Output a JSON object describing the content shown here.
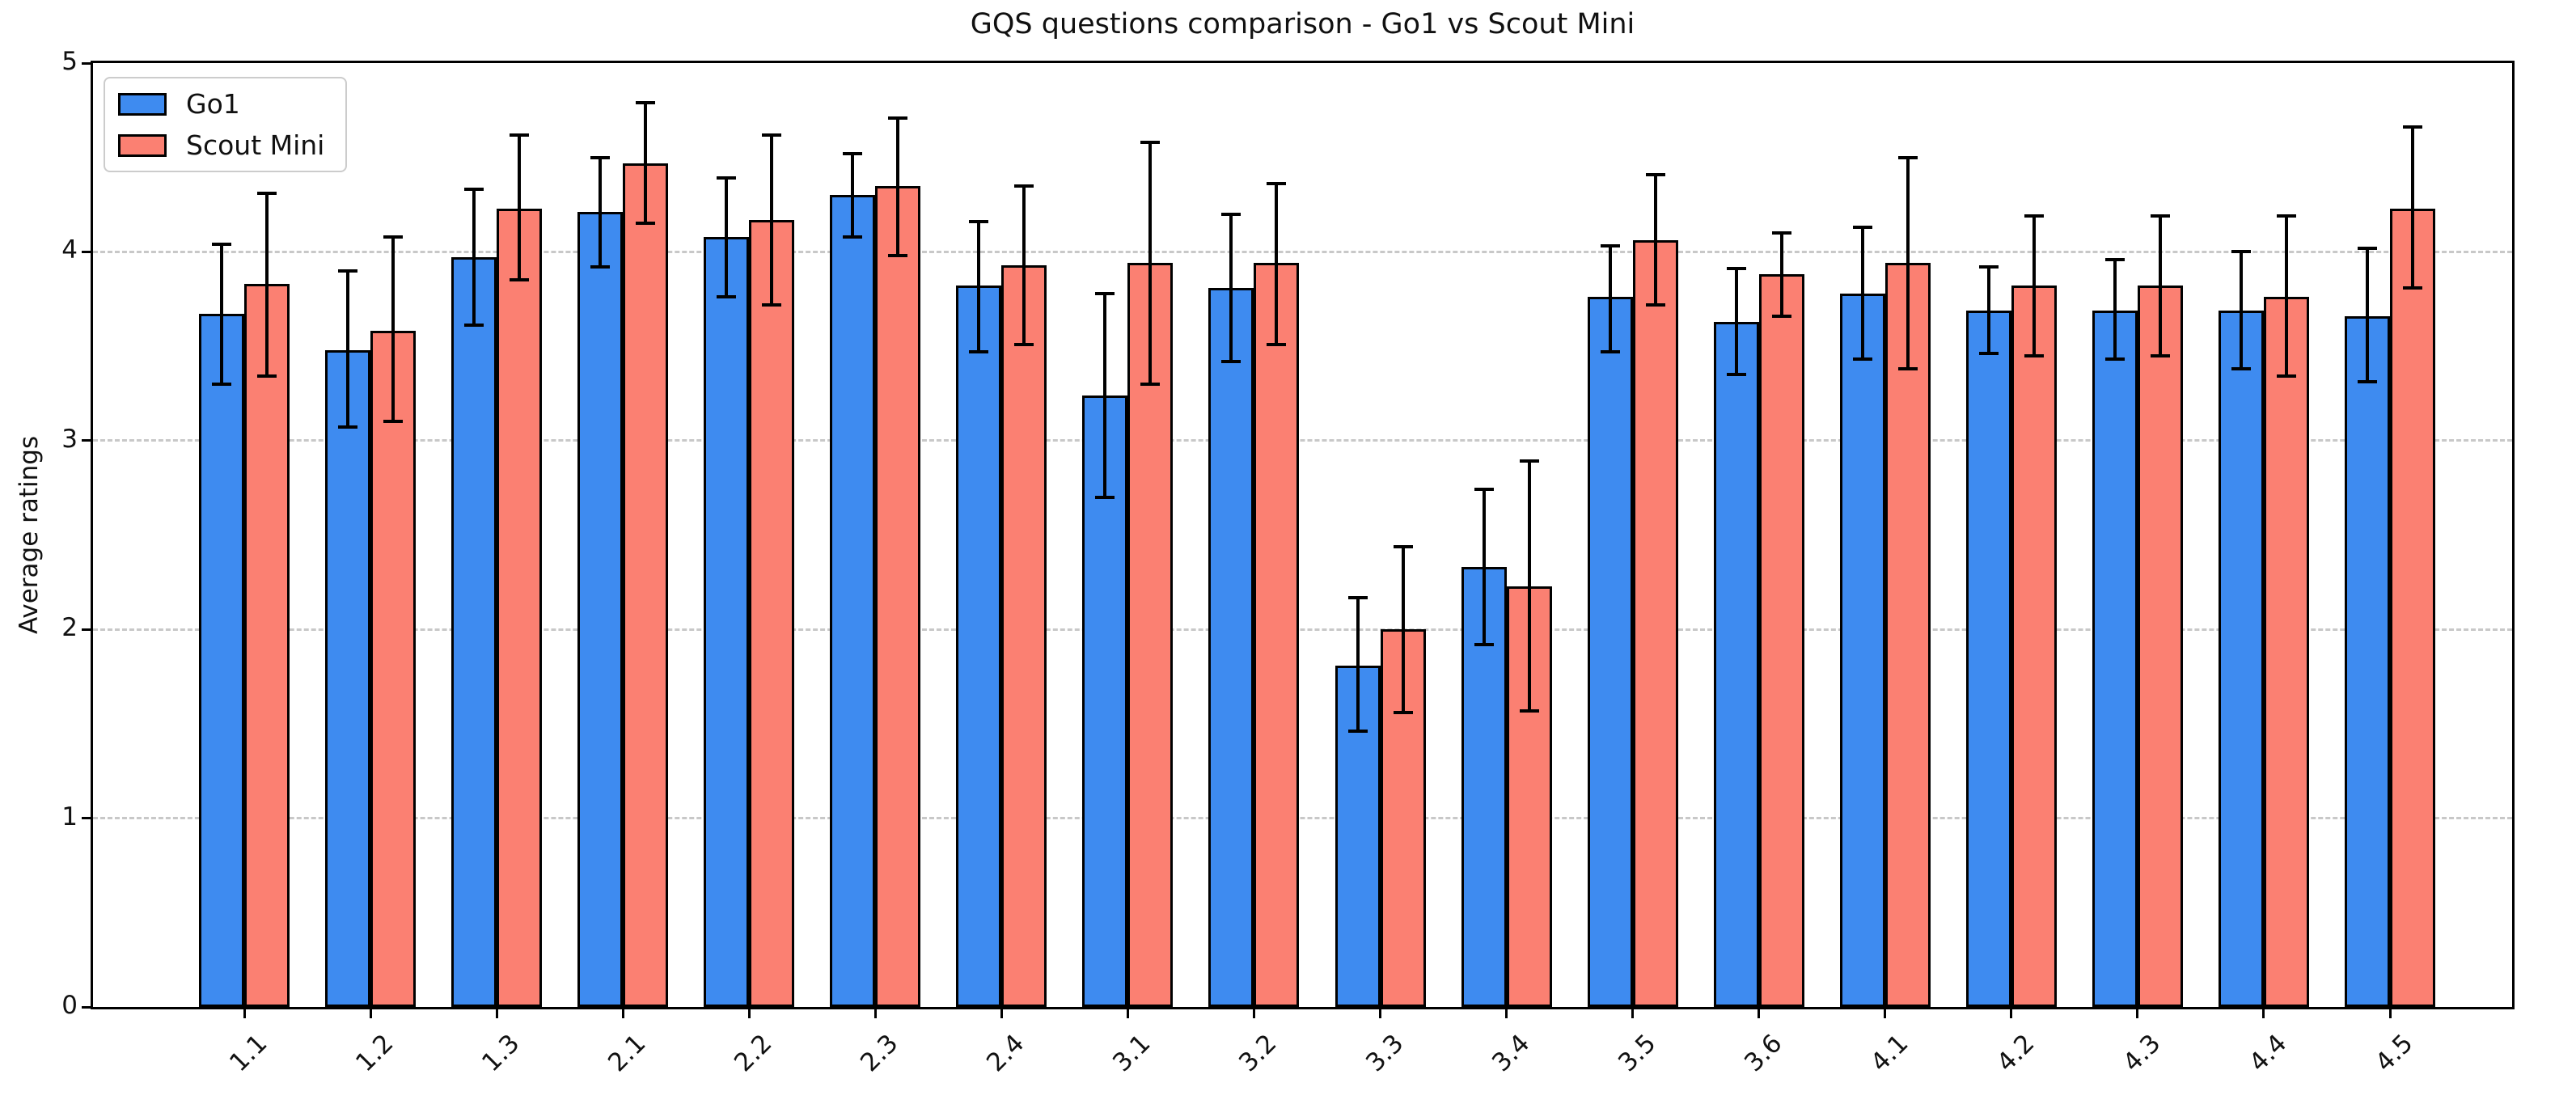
{
  "chart_data": {
    "type": "bar",
    "title": "GQS questions comparison - Go1 vs Scout Mini",
    "ylabel": "Average ratings",
    "xlabel": "",
    "ylim": [
      0,
      5
    ],
    "yticks": [
      0,
      1,
      2,
      3,
      4,
      5
    ],
    "grid": "horizontal-dashed-at-1-2-3-4",
    "legend_position": "upper-left",
    "grid_color": "#c8c8c8",
    "bar_edge_color": "#000000",
    "error_bar_color": "#000000",
    "categories": [
      "1.1",
      "1.2",
      "1.3",
      "2.1",
      "2.2",
      "2.3",
      "2.4",
      "3.1",
      "3.2",
      "3.3",
      "3.4",
      "3.5",
      "3.6",
      "4.1",
      "4.2",
      "4.3",
      "4.4",
      "4.5"
    ],
    "series": [
      {
        "name": "Go1",
        "color": "#3e8bf0",
        "values": [
          3.67,
          3.48,
          3.97,
          4.21,
          4.08,
          4.3,
          3.82,
          3.24,
          3.81,
          1.81,
          2.33,
          3.76,
          3.63,
          3.78,
          3.69,
          3.69,
          3.69,
          3.66
        ],
        "err_low": [
          3.3,
          3.07,
          3.61,
          3.92,
          3.76,
          4.08,
          3.47,
          2.7,
          3.42,
          1.46,
          1.92,
          3.47,
          3.35,
          3.43,
          3.46,
          3.43,
          3.38,
          3.31
        ],
        "err_high": [
          4.04,
          3.9,
          4.33,
          4.5,
          4.39,
          4.52,
          4.16,
          3.78,
          4.2,
          2.17,
          2.74,
          4.03,
          3.91,
          4.13,
          3.92,
          3.96,
          4.0,
          4.02
        ]
      },
      {
        "name": "Scout Mini",
        "color": "#fb8072",
        "values": [
          3.83,
          3.58,
          4.23,
          4.47,
          4.17,
          4.35,
          3.93,
          3.94,
          3.94,
          2.0,
          2.23,
          4.06,
          3.88,
          3.94,
          3.82,
          3.82,
          3.76,
          4.23
        ],
        "err_low": [
          3.34,
          3.1,
          3.85,
          4.15,
          3.72,
          3.98,
          3.51,
          3.3,
          3.51,
          1.56,
          1.57,
          3.72,
          3.66,
          3.38,
          3.45,
          3.45,
          3.34,
          3.81
        ],
        "err_high": [
          4.31,
          4.08,
          4.62,
          4.79,
          4.62,
          4.71,
          4.35,
          4.58,
          4.36,
          2.44,
          2.89,
          4.41,
          4.1,
          4.5,
          4.19,
          4.19,
          4.19,
          4.66
        ]
      }
    ]
  }
}
